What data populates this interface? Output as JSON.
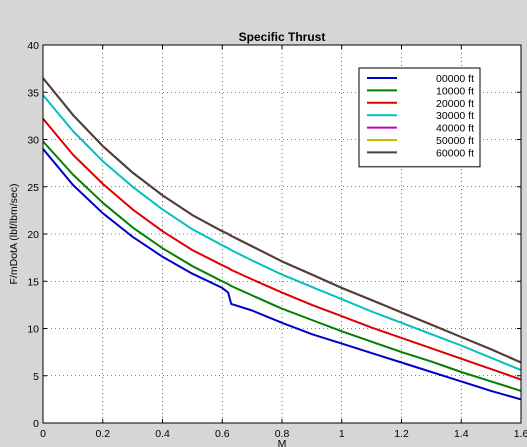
{
  "chart_data": {
    "type": "line",
    "title": "Specific Thrust",
    "xlabel": "M",
    "ylabel": "F/mDotA (lbf/lbm/sec)",
    "xlim": [
      0,
      1.6
    ],
    "ylim": [
      0,
      40
    ],
    "xticks": [
      0,
      0.2,
      0.4,
      0.6,
      0.8,
      1,
      1.2,
      1.4,
      1.6
    ],
    "yticks": [
      0,
      5,
      10,
      15,
      20,
      25,
      30,
      35,
      40
    ],
    "xtick_labels": [
      "0",
      "0.2",
      "0.4",
      "0.6",
      "0.8",
      "1",
      "1.2",
      "1.4",
      "1.6"
    ],
    "ytick_labels": [
      "0",
      "5",
      "10",
      "15",
      "20",
      "25",
      "30",
      "35",
      "40"
    ],
    "grid": true,
    "legend_position": "top-right",
    "x": [
      0,
      0.1,
      0.2,
      0.3,
      0.4,
      0.5,
      0.6,
      0.62,
      0.63,
      0.7,
      0.8,
      0.9,
      1.0,
      1.1,
      1.2,
      1.3,
      1.4,
      1.5,
      1.6
    ],
    "series": [
      {
        "name": "00000 ft",
        "color": "#0000cc",
        "values": [
          29,
          25.2,
          22.2,
          19.7,
          17.6,
          15.8,
          14.3,
          13.8,
          12.6,
          11.9,
          10.6,
          9.4,
          8.4,
          7.4,
          6.4,
          5.4,
          4.4,
          3.4,
          2.5
        ]
      },
      {
        "name": "10000 ft",
        "color": "#007f00",
        "values": [
          29.8,
          26.3,
          23.3,
          20.7,
          18.5,
          16.6,
          15.0,
          14.7,
          14.5,
          13.5,
          12.1,
          10.9,
          9.7,
          8.6,
          7.5,
          6.5,
          5.4,
          4.4,
          3.4
        ]
      },
      {
        "name": "20000 ft",
        "color": "#e00000",
        "values": [
          32.2,
          28.4,
          25.3,
          22.6,
          20.3,
          18.3,
          16.7,
          16.4,
          16.2,
          15.2,
          13.8,
          12.5,
          11.3,
          10.1,
          9.0,
          7.9,
          6.8,
          5.7,
          4.6
        ]
      },
      {
        "name": "30000 ft",
        "color": "#00c0c0",
        "values": [
          34.7,
          30.9,
          27.7,
          25.0,
          22.6,
          20.5,
          18.8,
          18.5,
          18.3,
          17.2,
          15.7,
          14.4,
          13.1,
          11.8,
          10.6,
          9.4,
          8.2,
          6.9,
          5.6
        ]
      },
      {
        "name": "40000 ft",
        "color": "#c000c0",
        "values": [
          36.5,
          32.6,
          29.3,
          26.5,
          24.1,
          22.0,
          20.3,
          20.0,
          19.8,
          18.7,
          17.1,
          15.7,
          14.3,
          13.0,
          11.7,
          10.4,
          9.1,
          7.8,
          6.4
        ]
      },
      {
        "name": "50000 ft",
        "color": "#c0c000",
        "values": [
          36.5,
          32.6,
          29.3,
          26.5,
          24.1,
          22.0,
          20.3,
          20.0,
          19.8,
          18.7,
          17.1,
          15.7,
          14.3,
          13.0,
          11.7,
          10.4,
          9.1,
          7.8,
          6.4
        ]
      },
      {
        "name": "60000 ft",
        "color": "#4d3d3d",
        "values": [
          36.5,
          32.6,
          29.3,
          26.5,
          24.1,
          22.0,
          20.3,
          20.0,
          19.8,
          18.7,
          17.1,
          15.7,
          14.3,
          13.0,
          11.7,
          10.4,
          9.1,
          7.8,
          6.4
        ]
      }
    ]
  }
}
